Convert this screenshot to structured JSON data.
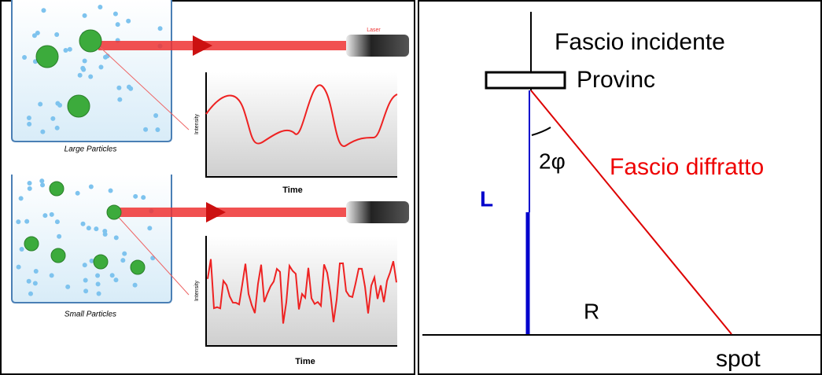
{
  "left_panel": {
    "laser_label": "Laser",
    "top": {
      "caption": "Large Particles",
      "x_label": "Time",
      "y_label": "Intensity"
    },
    "bottom": {
      "caption": "Small Particles",
      "x_label": "Time",
      "y_label": "Intensity"
    }
  },
  "right_panel": {
    "incident_beam": "Fascio incidente",
    "sample": "Provinc",
    "angle": "2φ",
    "diffracted_beam": "Fascio diffratto",
    "distance": "L",
    "radius": "R",
    "spot": "spot"
  }
}
